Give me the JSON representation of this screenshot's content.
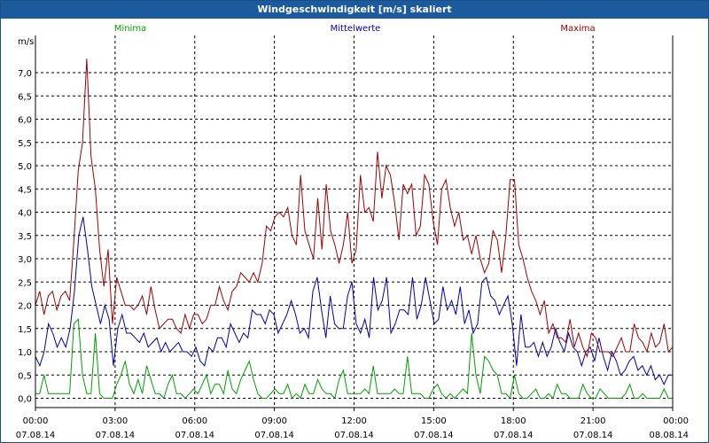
{
  "title": "Windgeschwindigkeit [m/s] skaliert",
  "chart_data": {
    "type": "line",
    "title": "Windgeschwindigkeit [m/s] skaliert",
    "ylabel": "m/s",
    "ylim": [
      -0.2,
      7.8
    ],
    "xlim": [
      0,
      24
    ],
    "grid": true,
    "yticks": [
      {
        "v": 0.0,
        "label": "0,0"
      },
      {
        "v": 0.5,
        "label": "0,5"
      },
      {
        "v": 1.0,
        "label": "1,0"
      },
      {
        "v": 1.5,
        "label": "1,5"
      },
      {
        "v": 2.0,
        "label": "2,0"
      },
      {
        "v": 2.5,
        "label": "2,5"
      },
      {
        "v": 3.0,
        "label": "3,0"
      },
      {
        "v": 3.5,
        "label": "3,5"
      },
      {
        "v": 4.0,
        "label": "4,0"
      },
      {
        "v": 4.5,
        "label": "4,5"
      },
      {
        "v": 5.0,
        "label": "5,0"
      },
      {
        "v": 5.5,
        "label": "5,5"
      },
      {
        "v": 6.0,
        "label": "6,0"
      },
      {
        "v": 6.5,
        "label": "6,5"
      },
      {
        "v": 7.0,
        "label": "7,0"
      }
    ],
    "xticks": [
      {
        "v": 0,
        "time": "00:00",
        "date": "07.08.14"
      },
      {
        "v": 3,
        "time": "03:00",
        "date": "07.08.14"
      },
      {
        "v": 6,
        "time": "06:00",
        "date": "07.08.14"
      },
      {
        "v": 9,
        "time": "09:00",
        "date": "07.08.14"
      },
      {
        "v": 12,
        "time": "12:00",
        "date": "07.08.14"
      },
      {
        "v": 15,
        "time": "15:00",
        "date": "07.08.14"
      },
      {
        "v": 18,
        "time": "18:00",
        "date": "07.08.14"
      },
      {
        "v": 21,
        "time": "21:00",
        "date": "07.08.14"
      },
      {
        "v": 24,
        "time": "00:00",
        "date": "08.08.14"
      }
    ],
    "series": [
      {
        "name": "Minima",
        "color": "#00a000",
        "values": [
          0.1,
          0.1,
          0.5,
          0.1,
          0.1,
          0.1,
          0.1,
          0.1,
          0.1,
          1.6,
          1.7,
          0.5,
          0.1,
          0.1,
          1.4,
          0.1,
          0.0,
          0.0,
          0.0,
          0.3,
          0.5,
          0.8,
          0.3,
          0.1,
          0.4,
          0.1,
          0.7,
          0.4,
          0.1,
          0.1,
          0.0,
          0.3,
          0.5,
          0.1,
          0.1,
          0.0,
          0.1,
          0.2,
          0.1,
          0.3,
          0.5,
          0.1,
          0.3,
          0.3,
          0.1,
          0.6,
          0.2,
          0.1,
          0.4,
          0.6,
          0.8,
          0.4,
          0.1,
          0.0,
          0.0,
          0.1,
          0.2,
          0.1,
          0.1,
          0.3,
          0.0,
          0.1,
          0.0,
          0.3,
          0.1,
          0.1,
          0.4,
          0.2,
          0.1,
          0.1,
          0.0,
          0.4,
          0.6,
          0.1,
          0.1,
          0.1,
          0.1,
          0.2,
          0.1,
          0.7,
          0.1,
          0.1,
          0.1,
          0.1,
          0.2,
          0.1,
          0.1,
          0.9,
          0.1,
          0.1,
          0.1,
          0.0,
          0.0,
          0.2,
          0.3,
          0.1,
          0.0,
          0.1,
          0.0,
          0.1,
          0.2,
          0.1,
          1.4,
          0.5,
          0.1,
          0.9,
          0.8,
          0.6,
          0.5,
          0.1,
          0.1,
          0.0,
          0.5,
          0.1,
          0.0,
          0.0,
          0.1,
          0.2,
          0.0,
          0.0,
          0.1,
          0.0,
          0.3,
          0.1,
          0.1,
          0.0,
          0.0,
          0.0,
          0.3,
          0.1,
          0.0,
          0.0,
          0.2,
          0.1,
          0.0,
          0.0,
          0.0,
          0.0,
          0.1,
          0.3,
          0.0,
          0.0,
          0.1,
          0.0,
          0.0,
          0.0,
          0.0,
          0.2,
          0.0,
          0.0
        ]
      },
      {
        "name": "Mittelwerte",
        "color": "#0000b0",
        "values": [
          0.9,
          0.7,
          1.0,
          1.6,
          1.4,
          1.1,
          1.3,
          1.1,
          1.5,
          2.3,
          3.5,
          3.9,
          3.2,
          2.4,
          2.0,
          1.6,
          2.0,
          1.7,
          0.7,
          1.5,
          1.8,
          1.4,
          1.4,
          1.3,
          1.2,
          1.4,
          1.1,
          1.2,
          1.3,
          1.0,
          1.2,
          1.0,
          1.1,
          1.2,
          1.0,
          1.0,
          0.9,
          1.1,
          0.8,
          0.7,
          1.1,
          1.0,
          1.3,
          1.3,
          1.1,
          1.6,
          1.4,
          1.2,
          1.4,
          1.3,
          1.9,
          1.8,
          1.8,
          1.6,
          1.9,
          1.8,
          1.4,
          1.6,
          1.8,
          2.1,
          1.8,
          1.4,
          1.5,
          1.3,
          2.3,
          2.6,
          1.9,
          1.3,
          2.2,
          1.6,
          1.5,
          1.5,
          2.2,
          2.5,
          1.6,
          1.4,
          1.7,
          1.3,
          2.6,
          1.9,
          2.1,
          2.6,
          1.4,
          1.6,
          1.9,
          1.9,
          1.8,
          2.6,
          1.7,
          2.0,
          2.6,
          2.1,
          1.6,
          1.7,
          2.4,
          1.9,
          2.1,
          1.8,
          2.4,
          1.6,
          1.9,
          1.4,
          1.6,
          2.5,
          2.6,
          2.2,
          2.1,
          1.8,
          2.0,
          2.2,
          1.6,
          0.7,
          1.8,
          1.1,
          1.1,
          1.2,
          0.9,
          1.2,
          0.9,
          1.1,
          1.5,
          1.2,
          1.0,
          1.4,
          1.1,
          1.0,
          0.7,
          1.0,
          1.1,
          0.8,
          1.3,
          0.9,
          0.6,
          1.0,
          0.8,
          0.5,
          0.6,
          0.8,
          0.9,
          0.6,
          0.7,
          0.5,
          0.7,
          0.4,
          0.5,
          0.3,
          0.5,
          0.5
        ]
      },
      {
        "name": "Maxima",
        "color": "#a00000",
        "values": [
          2.0,
          2.3,
          1.8,
          2.2,
          2.3,
          1.9,
          2.2,
          2.3,
          2.1,
          3.4,
          4.9,
          5.5,
          7.3,
          5.2,
          4.5,
          3.2,
          2.4,
          3.2,
          1.6,
          2.6,
          2.3,
          2.0,
          2.0,
          1.9,
          2.0,
          2.2,
          1.8,
          2.4,
          1.9,
          1.5,
          1.6,
          1.7,
          1.7,
          1.5,
          1.4,
          1.8,
          1.5,
          1.8,
          1.8,
          1.6,
          1.7,
          2.0,
          2.0,
          2.4,
          2.1,
          1.9,
          2.3,
          2.4,
          2.7,
          2.6,
          2.5,
          2.7,
          2.5,
          2.9,
          3.7,
          3.6,
          3.9,
          4.0,
          3.9,
          4.1,
          3.5,
          3.3,
          4.8,
          3.6,
          3.3,
          3.0,
          4.3,
          3.2,
          4.6,
          3.6,
          3.3,
          2.9,
          3.3,
          4.0,
          2.9,
          3.2,
          4.8,
          4.0,
          4.1,
          3.8,
          5.3,
          4.3,
          5.0,
          4.8,
          4.2,
          3.4,
          4.6,
          4.4,
          4.6,
          3.5,
          3.7,
          4.8,
          4.6,
          3.8,
          3.3,
          4.5,
          4.7,
          4.1,
          3.7,
          4.0,
          3.4,
          3.5,
          3.1,
          3.5,
          3.0,
          2.7,
          2.9,
          3.6,
          3.4,
          2.7,
          3.5,
          4.7,
          4.7,
          3.3,
          3.0,
          2.6,
          2.3,
          2.1,
          1.8,
          2.1,
          1.4,
          1.6,
          1.3,
          1.3,
          1.2,
          1.7,
          1.1,
          1.4,
          1.1,
          0.9,
          1.4,
          1.3,
          1.0,
          1.0,
          1.0,
          0.9,
          1.1,
          1.3,
          1.0,
          1.0,
          1.6,
          1.3,
          1.2,
          1.0,
          1.4,
          1.1,
          1.2,
          1.6,
          1.0,
          1.1
        ]
      }
    ]
  }
}
